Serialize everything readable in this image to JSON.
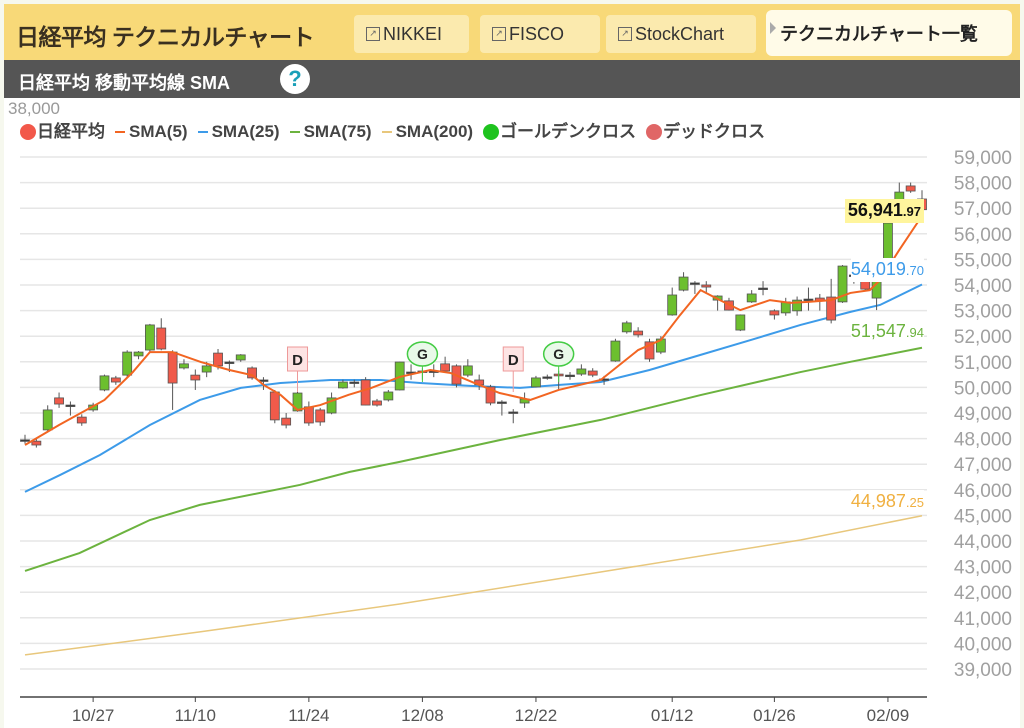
{
  "header": {
    "title": "日経平均 テクニカルチャート",
    "links": [
      {
        "label": "NIKKEI",
        "icon": "external-link-icon"
      },
      {
        "label": "FISCO",
        "icon": "external-link-icon"
      },
      {
        "label": "StockChart",
        "icon": "external-link-icon"
      }
    ],
    "list_button": "テクニカルチャート一覧"
  },
  "subheader": {
    "title": "日経平均 移動平均線 SMA",
    "help": "?"
  },
  "stray_label": "38,000",
  "legend": [
    {
      "label": "日経平均",
      "marker": "dot",
      "color": "#f2584a"
    },
    {
      "label": "SMA(5)",
      "marker": "dash",
      "color": "#f26522"
    },
    {
      "label": "SMA(25)",
      "marker": "dash",
      "color": "#3d9be9"
    },
    {
      "label": "SMA(75)",
      "marker": "dash",
      "color": "#6cb33f"
    },
    {
      "label": "SMA(200)",
      "marker": "dash",
      "color": "#e8c77c"
    },
    {
      "label": "ゴールデンクロス",
      "marker": "dot",
      "color": "#1ec31e"
    },
    {
      "label": "デッドクロス",
      "marker": "dot",
      "color": "#e06666"
    }
  ],
  "last_values": {
    "price": {
      "int": "56,941",
      "dec": ".97",
      "value": 56941.97
    },
    "sma25": {
      "int": "54,019",
      "dec": ".70",
      "value": 54019.7,
      "color": "#3d9be9"
    },
    "sma75": {
      "int": "51,547",
      "dec": ".94",
      "value": 51547.94,
      "color": "#6cb33f"
    },
    "sma200": {
      "int": "44,987",
      "dec": ".25",
      "value": 44987.25,
      "color": "#f0b040"
    }
  },
  "chart_data": {
    "type": "candlestick",
    "ylim": [
      38000,
      59000
    ],
    "y_ticks": [
      39000,
      40000,
      41000,
      42000,
      43000,
      44000,
      45000,
      46000,
      47000,
      48000,
      49000,
      50000,
      51000,
      52000,
      53000,
      54000,
      55000,
      56000,
      57000,
      58000,
      59000
    ],
    "y_tick_labels": [
      "39,000",
      "40,000",
      "41,000",
      "42,000",
      "43,000",
      "44,000",
      "45,000",
      "46,000",
      "47,000",
      "48,000",
      "49,000",
      "50,000",
      "51,000",
      "52,000",
      "53,000",
      "54,000",
      "55,000",
      "56,000",
      "57,000",
      "58,000",
      "59,000"
    ],
    "x_ticks": [
      {
        "label": "10/27",
        "index": 6
      },
      {
        "label": "11/10",
        "index": 15
      },
      {
        "label": "11/24",
        "index": 25
      },
      {
        "label": "12/08",
        "index": 35
      },
      {
        "label": "12/22",
        "index": 45
      },
      {
        "label": "01/12",
        "index": 57
      },
      {
        "label": "01/26",
        "index": 66
      },
      {
        "label": "02/09",
        "index": 76
      }
    ],
    "colors": {
      "up": "#6cbf2e",
      "down": "#f05a4a"
    },
    "candles_ohlc": [
      [
        47950,
        48150,
        47800,
        47950
      ],
      [
        47900,
        48000,
        47650,
        47750
      ],
      [
        48340,
        49300,
        48300,
        49120
      ],
      [
        49590,
        49800,
        49200,
        49350
      ],
      [
        49310,
        49450,
        48900,
        49310
      ],
      [
        48840,
        48950,
        48500,
        48610
      ],
      [
        49120,
        49400,
        49050,
        49310
      ],
      [
        49900,
        50500,
        49850,
        50450
      ],
      [
        50370,
        50450,
        50100,
        50210
      ],
      [
        50480,
        51450,
        50400,
        51380
      ],
      [
        51230,
        51420,
        51100,
        51380
      ],
      [
        51460,
        52480,
        51380,
        52440
      ],
      [
        52320,
        52700,
        51450,
        51500
      ],
      [
        51380,
        51450,
        49120,
        50170
      ],
      [
        50760,
        51100,
        50700,
        50920
      ],
      [
        50480,
        50700,
        49900,
        50290
      ],
      [
        50600,
        51000,
        50400,
        50840
      ],
      [
        51340,
        51500,
        50700,
        50840
      ],
      [
        50990,
        51050,
        50600,
        50990
      ],
      [
        51070,
        51300,
        51000,
        51270
      ],
      [
        50760,
        50820,
        50300,
        50370
      ],
      [
        50290,
        50400,
        49900,
        50290
      ],
      [
        49820,
        49900,
        48600,
        48730
      ],
      [
        48800,
        49000,
        48400,
        48530
      ],
      [
        49080,
        50450,
        49050,
        49780
      ],
      [
        49240,
        49450,
        48500,
        48610
      ],
      [
        49120,
        49200,
        48500,
        48650
      ],
      [
        49000,
        49800,
        48950,
        49590
      ],
      [
        49980,
        50300,
        49950,
        50210
      ],
      [
        50210,
        50300,
        50000,
        50210
      ],
      [
        50290,
        50400,
        49300,
        49310
      ],
      [
        49470,
        49550,
        49250,
        49310
      ],
      [
        49510,
        49900,
        49450,
        49820
      ],
      [
        49900,
        51000,
        49880,
        50990
      ],
      [
        50600,
        50900,
        50300,
        50600
      ],
      [
        50640,
        50750,
        50300,
        50640
      ],
      [
        50640,
        50900,
        50400,
        50640
      ],
      [
        50920,
        51200,
        50600,
        50640
      ],
      [
        50840,
        50900,
        50000,
        50130
      ],
      [
        50480,
        51100,
        50400,
        50840
      ],
      [
        50290,
        50500,
        49900,
        50100
      ],
      [
        50020,
        50100,
        49300,
        49390
      ],
      [
        49430,
        49500,
        48900,
        49430
      ],
      [
        49040,
        49150,
        48600,
        49040
      ],
      [
        49390,
        49800,
        49200,
        49550
      ],
      [
        50020,
        50450,
        50000,
        50370
      ],
      [
        50410,
        50500,
        50300,
        50410
      ],
      [
        50520,
        50650,
        49900,
        50450
      ],
      [
        50480,
        50600,
        50300,
        50480
      ],
      [
        50520,
        50900,
        50450,
        50720
      ],
      [
        50640,
        50750,
        50400,
        50480
      ],
      [
        50330,
        50450,
        50100,
        50330
      ],
      [
        51030,
        51900,
        51000,
        51810
      ],
      [
        52170,
        52600,
        52100,
        52520
      ],
      [
        52200,
        52350,
        51950,
        52050
      ],
      [
        51780,
        51900,
        51000,
        51110
      ],
      [
        51380,
        52000,
        51300,
        51890
      ],
      [
        52830,
        53900,
        52800,
        53610
      ],
      [
        53800,
        54500,
        53750,
        54310
      ],
      [
        54080,
        54150,
        53650,
        54080
      ],
      [
        54000,
        54150,
        53650,
        53920
      ],
      [
        53410,
        53600,
        53000,
        53570
      ],
      [
        53380,
        53500,
        53000,
        53020
      ],
      [
        52240,
        52850,
        52200,
        52830
      ],
      [
        53340,
        53800,
        53300,
        53650
      ],
      [
        53880,
        54150,
        53600,
        53880
      ],
      [
        52990,
        53050,
        52650,
        52830
      ],
      [
        52910,
        53500,
        52800,
        53340
      ],
      [
        52990,
        53550,
        52800,
        53410
      ],
      [
        53450,
        53900,
        53000,
        53450
      ],
      [
        53490,
        53650,
        53000,
        53380
      ],
      [
        53530,
        54240,
        52500,
        52630
      ],
      [
        53340,
        54780,
        53300,
        54740
      ],
      [
        54390,
        54500,
        54050,
        54390
      ],
      [
        54270,
        54350,
        53750,
        53840
      ],
      [
        53490,
        54300,
        53020,
        54270
      ],
      [
        54740,
        57160,
        54510,
        56420
      ],
      [
        56850,
        58000,
        56800,
        57630
      ],
      [
        57870,
        58000,
        57600,
        57670
      ],
      [
        57360,
        57700,
        56850,
        56941.97
      ]
    ],
    "series": [
      {
        "name": "SMA(5)",
        "color": "#f26522",
        "points": [
          [
            0,
            47750
          ],
          [
            3,
            48530
          ],
          [
            7,
            49510
          ],
          [
            9.5,
            50600
          ],
          [
            11,
            51380
          ],
          [
            13,
            51380
          ],
          [
            15.5,
            50990
          ],
          [
            18,
            50680
          ],
          [
            20,
            50480
          ],
          [
            21,
            50100
          ],
          [
            22.5,
            49710
          ],
          [
            24,
            49120
          ],
          [
            26,
            49310
          ],
          [
            28.5,
            49710
          ],
          [
            30.5,
            49980
          ],
          [
            33,
            50410
          ],
          [
            35.7,
            50680
          ],
          [
            37.5,
            50560
          ],
          [
            39.6,
            50170
          ],
          [
            41.8,
            49780
          ],
          [
            44.5,
            49510
          ],
          [
            47,
            49900
          ],
          [
            50.7,
            50290
          ],
          [
            54,
            51460
          ],
          [
            56,
            51850
          ],
          [
            57.7,
            52830
          ],
          [
            59.5,
            53800
          ],
          [
            61.2,
            53410
          ],
          [
            63,
            53020
          ],
          [
            65.6,
            53410
          ],
          [
            67.4,
            53300
          ],
          [
            69,
            53340
          ],
          [
            71,
            53410
          ],
          [
            72.7,
            53690
          ],
          [
            74.4,
            53800
          ],
          [
            75.3,
            54190
          ],
          [
            77,
            55370
          ],
          [
            79,
            56700
          ]
        ]
      },
      {
        "name": "SMA(25)",
        "color": "#3d9be9",
        "points": [
          [
            0,
            45920
          ],
          [
            3.1,
            46580
          ],
          [
            6.6,
            47360
          ],
          [
            11,
            48530
          ],
          [
            15.4,
            49510
          ],
          [
            19,
            49980
          ],
          [
            22.5,
            50170
          ],
          [
            26.9,
            50290
          ],
          [
            31.3,
            50290
          ],
          [
            34.8,
            50170
          ],
          [
            39.2,
            50060
          ],
          [
            43.6,
            49980
          ],
          [
            47.1,
            50100
          ],
          [
            50.7,
            50210
          ],
          [
            55,
            50680
          ],
          [
            59.5,
            51270
          ],
          [
            63.9,
            51850
          ],
          [
            68.3,
            52440
          ],
          [
            72.7,
            52950
          ],
          [
            75.3,
            53220
          ],
          [
            79,
            54019.7
          ]
        ]
      },
      {
        "name": "SMA(75)",
        "color": "#6cb33f",
        "points": [
          [
            0,
            42830
          ],
          [
            4.8,
            43530
          ],
          [
            11,
            44820
          ],
          [
            15.4,
            45410
          ],
          [
            24.2,
            46190
          ],
          [
            28.6,
            46700
          ],
          [
            33,
            47090
          ],
          [
            41.9,
            47950
          ],
          [
            50.7,
            48730
          ],
          [
            59.5,
            49700
          ],
          [
            68.3,
            50600
          ],
          [
            72.7,
            51000
          ],
          [
            79,
            51547.94
          ]
        ]
      },
      {
        "name": "SMA(200)",
        "color": "#e8c77c",
        "points": [
          [
            0,
            39550
          ],
          [
            15.4,
            40450
          ],
          [
            33,
            41540
          ],
          [
            50.7,
            42790
          ],
          [
            68.3,
            44040
          ],
          [
            79,
            44987.25
          ]
        ]
      }
    ],
    "signals": [
      {
        "type": "dead",
        "label": "D",
        "index": 24
      },
      {
        "type": "golden",
        "label": "G",
        "index": 35
      },
      {
        "type": "dead",
        "label": "D",
        "index": 43
      },
      {
        "type": "golden",
        "label": "G",
        "index": 47
      }
    ],
    "grid": true
  }
}
